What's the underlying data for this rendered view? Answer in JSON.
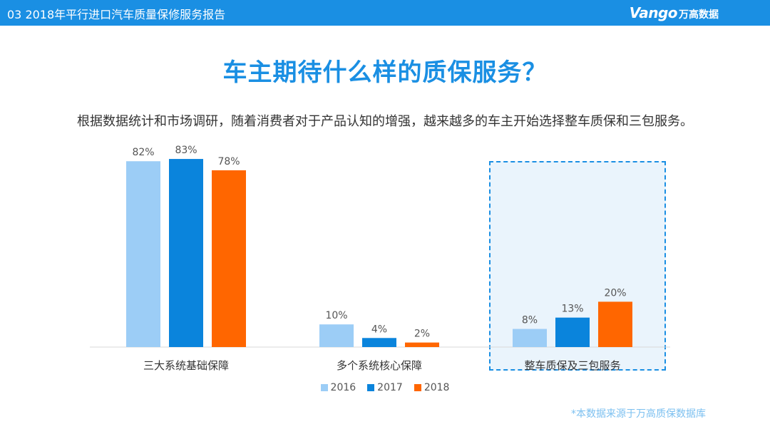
{
  "header": {
    "title": "03 2018年平行进口汽车质量保修服务报告",
    "brand_logo": "Vango",
    "brand_name": "万高数据"
  },
  "headline": "车主期待什么样的质保服务？",
  "subtitle": "根据数据统计和市场调研，随着消费者对于产品认知的增强，越来越多的车主开始选择整车质保和三包服务。",
  "source_note": "*本数据来源于万高质保数据库",
  "colors": {
    "accent": "#1a8fe3",
    "s2016": "#9ccdf6",
    "s2017": "#0a84dc",
    "s2018": "#ff6600",
    "highlight_bg": "#eaf4fc"
  },
  "chart_data": {
    "type": "bar",
    "categories": [
      "三大系统基础保障",
      "多个系统核心保障",
      "整车质保及三包服务"
    ],
    "series": [
      {
        "name": "2016",
        "values": [
          82,
          10,
          8
        ]
      },
      {
        "name": "2017",
        "values": [
          83,
          4,
          13
        ]
      },
      {
        "name": "2018",
        "values": [
          78,
          2,
          20
        ]
      }
    ],
    "value_labels": [
      [
        "82%",
        "10%",
        "8%"
      ],
      [
        "83%",
        "4%",
        "13%"
      ],
      [
        "78%",
        "2%",
        "20%"
      ]
    ],
    "ylim": [
      0,
      100
    ],
    "title": "",
    "xlabel": "",
    "ylabel": "",
    "grid": false,
    "legend": "bottom-center",
    "highlighted_category": "整车质保及三包服务"
  }
}
